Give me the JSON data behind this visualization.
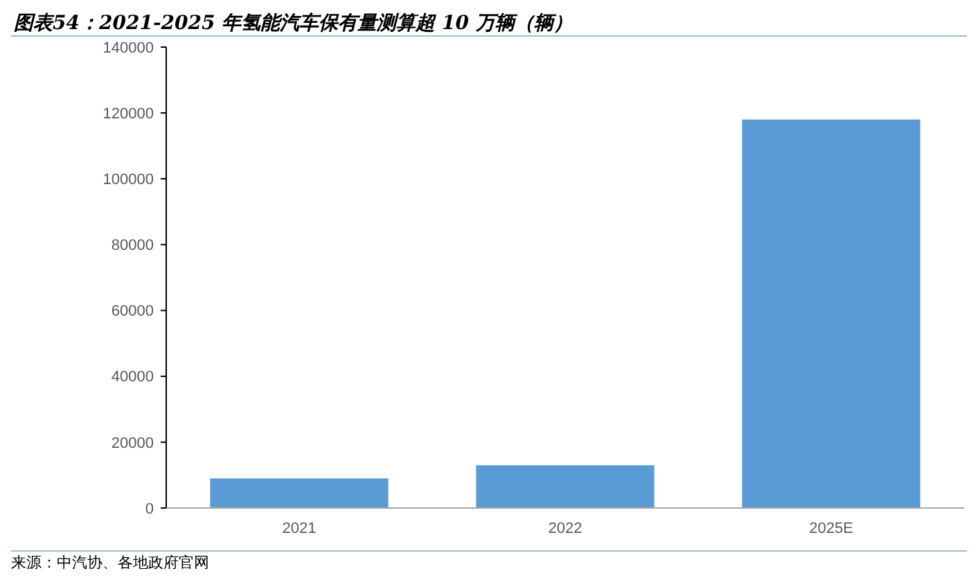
{
  "chart_data": {
    "type": "bar",
    "title": "图表54：2021-2025 年氢能汽车保有量测算超 10 万辆（辆）",
    "categories": [
      "2021",
      "2022",
      "2025E"
    ],
    "values": [
      9000,
      13000,
      118000
    ],
    "color": "#5b9bd5",
    "ylim": [
      0,
      140000
    ],
    "yticks": [
      0,
      20000,
      40000,
      60000,
      80000,
      100000,
      120000,
      140000
    ],
    "grid": false,
    "annotations": [
      "来源：中汽协、各地政府官网"
    ]
  }
}
